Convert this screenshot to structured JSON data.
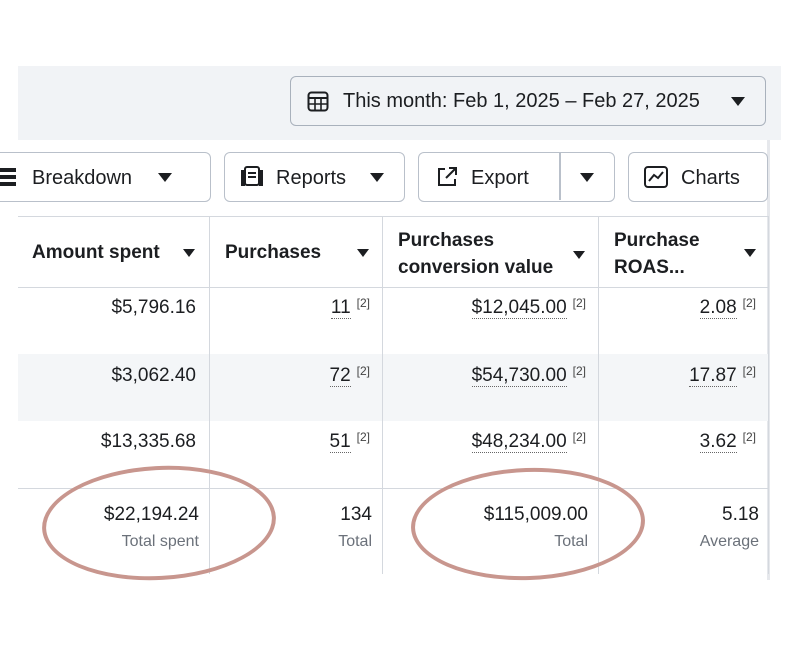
{
  "date_range": {
    "label": "This month: Feb 1, 2025 – Feb 27, 2025"
  },
  "toolbar": {
    "breakdown_label": "Breakdown",
    "reports_label": "Reports",
    "export_label": "Export",
    "charts_label": "Charts"
  },
  "columns": [
    {
      "label_line1": "Amount spent",
      "label_line2": ""
    },
    {
      "label_line1": "Purchases",
      "label_line2": ""
    },
    {
      "label_line1": "Purchases",
      "label_line2": "conversion value"
    },
    {
      "label_line1": "Purchase",
      "label_line2": "ROAS..."
    }
  ],
  "rows": [
    {
      "amount_spent": "$5,796.16",
      "purchases": "11",
      "conversion_value": "$12,045.00",
      "roas": "2.08",
      "note": "[2]"
    },
    {
      "amount_spent": "$3,062.40",
      "purchases": "72",
      "conversion_value": "$54,730.00",
      "roas": "17.87",
      "note": "[2]"
    },
    {
      "amount_spent": "$13,335.68",
      "purchases": "51",
      "conversion_value": "$48,234.00",
      "roas": "3.62",
      "note": "[2]"
    }
  ],
  "totals": {
    "amount_spent": {
      "value": "$22,194.24",
      "label": "Total spent"
    },
    "purchases": {
      "value": "134",
      "label": "Total"
    },
    "conversion_value": {
      "value": "$115,009.00",
      "label": "Total"
    },
    "roas": {
      "value": "5.18",
      "label": "Average"
    }
  },
  "annotation_color": "#c8968e"
}
